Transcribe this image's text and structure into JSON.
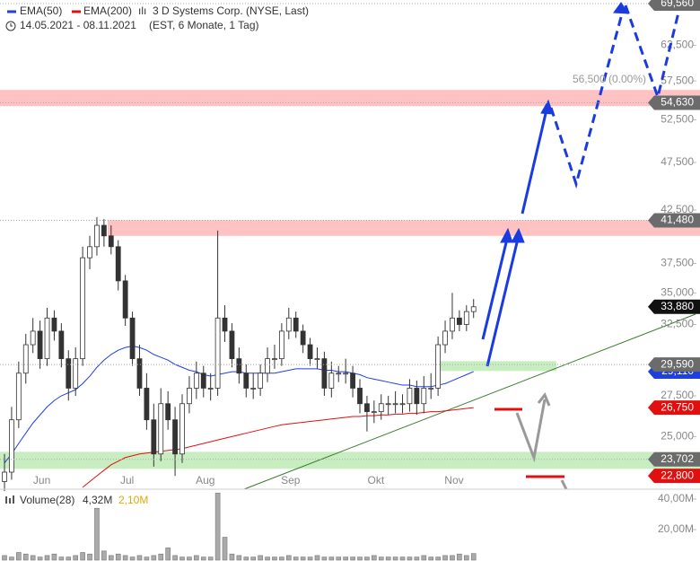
{
  "chart_data": {
    "type": "candlestick",
    "title": "3 D Systems Corp. (NYSE, Last)",
    "subtitle": "14.05.2021 - 08.11.2021",
    "note": "(EST, 6 Monate, 1 Tag)",
    "log_scale": true,
    "categories": [
      null,
      null,
      null,
      null,
      null,
      "Jun",
      null,
      null,
      null,
      null,
      null,
      null,
      null,
      null,
      null,
      null,
      null,
      "Jul",
      null,
      null,
      null,
      null,
      null,
      null,
      null,
      null,
      null,
      null,
      "Aug",
      null,
      null,
      null,
      null,
      null,
      null,
      null,
      null,
      null,
      null,
      null,
      "Sep",
      null,
      null,
      null,
      null,
      null,
      null,
      null,
      null,
      null,
      null,
      null,
      "Okt",
      null,
      null,
      null,
      null,
      null,
      null,
      null,
      null,
      null,
      null,
      "Nov",
      null,
      null,
      null
    ],
    "open": [
      22.5,
      23,
      26,
      29,
      31,
      32,
      30,
      33,
      32,
      30,
      28,
      30,
      38,
      39,
      41,
      40,
      39,
      36,
      33,
      30,
      28,
      26,
      24,
      27,
      26,
      24,
      27,
      28,
      29,
      28,
      28,
      33,
      32,
      30,
      29,
      28,
      28,
      29,
      30,
      30,
      32,
      33,
      32,
      31,
      30,
      30,
      28,
      29,
      29,
      29,
      28,
      27,
      26.5,
      26.5,
      27,
      27,
      27,
      27,
      28,
      27,
      28,
      28,
      31,
      32,
      33,
      32.5,
      33.5
    ],
    "high": [
      24,
      26.8,
      29.8,
      31.8,
      33,
      32.8,
      33.8,
      33.6,
      32.6,
      30.6,
      30.8,
      39,
      40,
      41.8,
      41.6,
      41,
      39.6,
      36.5,
      33.5,
      31,
      29,
      27,
      28,
      27.8,
      26.8,
      27.6,
      28.8,
      29.8,
      29.5,
      29,
      40.5,
      34,
      32.6,
      30.8,
      29.6,
      29,
      29.6,
      30.8,
      31,
      32.6,
      33.8,
      33.5,
      32.5,
      31.5,
      30.8,
      30.5,
      29.8,
      29.5,
      30,
      29.5,
      28.6,
      27.5,
      27.2,
      27.6,
      27.5,
      27.8,
      27.6,
      28.6,
      28.5,
      28.8,
      29,
      31.6,
      32.8,
      35,
      33.6,
      34,
      34.5
    ],
    "low": [
      22,
      22.6,
      25.5,
      28.3,
      30.4,
      29.3,
      29.5,
      31.3,
      29.4,
      27.2,
      27.5,
      29.5,
      37,
      38.2,
      39,
      38.3,
      35.2,
      32.4,
      29.5,
      27.5,
      25.4,
      23.3,
      23.6,
      25.4,
      22.8,
      23.5,
      26.4,
      27.3,
      27.4,
      27.2,
      27.5,
      31.2,
      29.4,
      28.3,
      27.4,
      27.3,
      27.5,
      28.4,
      29.3,
      29.5,
      31.4,
      31.5,
      30.4,
      29.5,
      29.3,
      27.5,
      27.4,
      28.4,
      28.3,
      27.4,
      26.4,
      25.3,
      25.8,
      26,
      26.3,
      26.4,
      26.4,
      26.5,
      26.3,
      26.4,
      27.3,
      27.5,
      30.4,
      31.4,
      32,
      32,
      33
    ],
    "close": [
      23,
      26,
      29,
      31,
      32,
      30,
      33,
      32,
      30,
      28,
      30,
      38,
      39,
      41,
      40,
      39,
      36,
      33,
      30,
      28,
      26,
      24,
      27,
      26,
      24,
      27,
      28,
      29,
      28,
      28,
      33,
      32,
      30,
      29,
      28,
      28,
      29,
      30,
      30,
      32,
      33,
      32,
      31,
      30,
      30,
      28,
      29,
      29,
      29,
      28,
      27,
      26.5,
      26.5,
      27,
      27,
      27,
      27,
      28,
      27,
      28,
      28,
      31,
      32,
      33,
      32.5,
      33.5,
      33.88
    ],
    "series": [
      {
        "name": "EMA(50)",
        "color": "#1f3fe0",
        "values": [
          23.5,
          24,
          24.6,
          25.2,
          25.8,
          26.3,
          26.8,
          27.2,
          27.5,
          27.7,
          27.9,
          28.3,
          28.8,
          29.4,
          29.9,
          30.3,
          30.6,
          30.8,
          30.9,
          30.8,
          30.6,
          30.3,
          30.1,
          29.9,
          29.6,
          29.4,
          29.2,
          29.1,
          28.9,
          28.8,
          28.9,
          29,
          29.1,
          29.1,
          29,
          29,
          29,
          29,
          29,
          29.1,
          29.2,
          29.3,
          29.3,
          29.3,
          29.3,
          29.2,
          29.2,
          29.1,
          29.1,
          29,
          28.9,
          28.7,
          28.6,
          28.5,
          28.4,
          28.3,
          28.2,
          28.2,
          28.1,
          28.1,
          28.1,
          28.2,
          28.3,
          28.5,
          28.7,
          28.9,
          29.11
        ]
      },
      {
        "name": "EMA(200)",
        "color": "#e01010",
        "values": [
          null,
          null,
          null,
          null,
          null,
          null,
          null,
          null,
          null,
          null,
          null,
          22.2,
          22.5,
          22.8,
          23.1,
          23.4,
          23.6,
          23.8,
          23.9,
          24,
          24.05,
          24.1,
          24.15,
          24.2,
          24.25,
          24.3,
          24.4,
          24.5,
          24.6,
          24.7,
          24.8,
          24.9,
          25,
          25.1,
          25.2,
          25.3,
          25.4,
          25.5,
          25.6,
          25.7,
          25.75,
          25.8,
          25.85,
          25.9,
          25.95,
          26,
          26.05,
          26.1,
          26.15,
          26.2,
          26.2,
          26.25,
          26.25,
          26.3,
          26.3,
          26.35,
          26.35,
          26.4,
          26.4,
          26.45,
          26.5,
          26.5,
          26.55,
          26.6,
          26.65,
          26.7,
          26.75
        ]
      }
    ],
    "ylim": [
      22.1,
      69.5
    ],
    "yticks": [
      {
        "value": 25,
        "label": "25,000"
      },
      {
        "value": 27.5,
        "label": "27,500"
      },
      {
        "value": 32.5,
        "label": "32,500"
      },
      {
        "value": 35,
        "label": "35,000"
      },
      {
        "value": 37.5,
        "label": "37,500"
      },
      {
        "value": 42.5,
        "label": "42,500"
      },
      {
        "value": 47.5,
        "label": "47,500"
      },
      {
        "value": 52.5,
        "label": "52,500"
      },
      {
        "value": 57.5,
        "label": "57,500"
      },
      {
        "value": 62.5,
        "label": "62,500"
      }
    ],
    "zones": [
      {
        "from": 54.2,
        "to": 56.3,
        "color": "#ffb3b3"
      },
      {
        "from": 40.0,
        "to": 41.5,
        "color": "#ffb3b3"
      },
      {
        "from": 29.15,
        "to": 29.83,
        "color": "#b9e8b0"
      },
      {
        "from": 23.18,
        "to": 24.12,
        "color": "#b9e8b0"
      }
    ],
    "annotations": [
      {
        "value": 69.56,
        "label": "69,560",
        "color": "#6b6b6b"
      },
      {
        "value": 54.63,
        "label": "54,630",
        "color": "#6b6b6b"
      },
      {
        "value": 41.48,
        "label": "41,480",
        "color": "#6b6b6b"
      },
      {
        "value": 33.88,
        "label": "33,880",
        "color": "#111111"
      },
      {
        "value": 29.11,
        "label": "29,110",
        "color": "#1f3fe0"
      },
      {
        "value": 29.59,
        "label": "29,590",
        "color": "#6b6b6b"
      },
      {
        "value": 26.75,
        "label": "26,750",
        "color": "#e01010"
      },
      {
        "value": 23.702,
        "label": "23,702",
        "color": "#6b6b6b"
      },
      {
        "value": 22.8,
        "label": "22,800",
        "color": "#e01010"
      }
    ],
    "marker_text": "56,500 (0.00%)",
    "volume": {
      "title": "Volume(28)",
      "last": "4,32M",
      "average": "2,10M",
      "color": "#888888",
      "values": [
        3,
        2,
        5,
        4,
        3,
        2,
        3,
        4,
        2,
        2,
        3,
        5,
        4,
        34,
        6,
        3,
        4,
        3,
        2,
        3,
        2,
        3,
        4,
        8,
        3,
        2,
        2,
        3,
        2,
        2,
        44,
        15,
        4,
        3,
        2,
        2,
        3,
        2,
        2,
        2,
        3,
        2,
        2,
        2,
        3,
        2,
        2,
        2,
        2,
        2,
        2,
        2,
        3,
        2,
        2,
        2,
        2,
        2,
        2,
        3,
        2,
        2,
        3,
        3,
        4,
        3,
        4.32
      ],
      "ylim": [
        0,
        46.5
      ],
      "yticks": [
        {
          "value": 20,
          "label": "20,00M"
        },
        {
          "value": 40,
          "label": "40,00M"
        }
      ]
    }
  }
}
